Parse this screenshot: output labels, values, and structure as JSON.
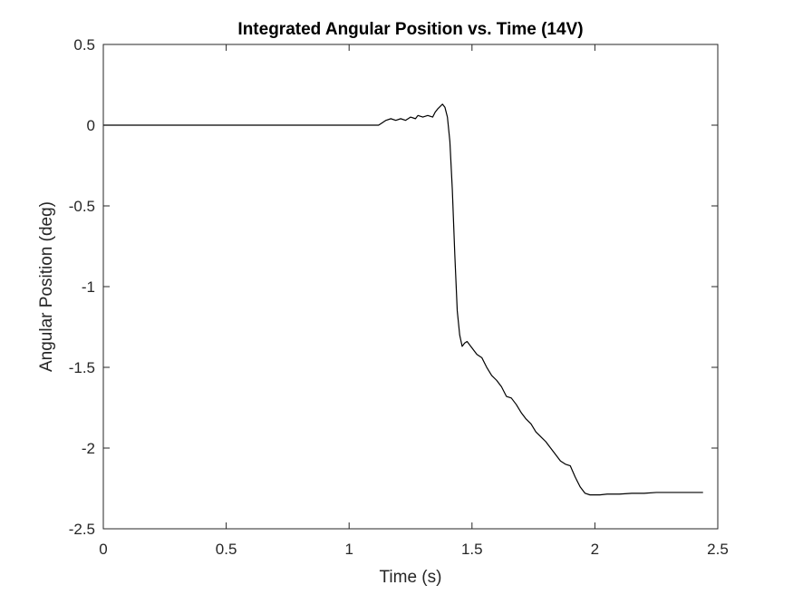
{
  "chart_data": {
    "type": "line",
    "title": "Integrated Angular Position vs. Time (14V)",
    "xlabel": "Time (s)",
    "ylabel": "Angular Position (deg)",
    "xlim": [
      0,
      2.5
    ],
    "ylim": [
      -2.5,
      0.5
    ],
    "xticks": [
      0,
      0.5,
      1,
      1.5,
      2,
      2.5
    ],
    "yticks": [
      -2.5,
      -2,
      -1.5,
      -1,
      -0.5,
      0,
      0.5
    ],
    "xtick_labels": [
      "0",
      "0.5",
      "1",
      "1.5",
      "2",
      "2.5"
    ],
    "ytick_labels": [
      "-2.5",
      "-2",
      "-1.5",
      "-1",
      "-0.5",
      "0",
      "0.5"
    ],
    "grid": false,
    "box": true,
    "line_color": "#000000",
    "axis_color": "#262626",
    "series": [
      {
        "x": [
          0,
          0.5,
          1.0,
          1.12,
          1.13,
          1.15,
          1.17,
          1.19,
          1.21,
          1.23,
          1.25,
          1.27,
          1.28,
          1.3,
          1.32,
          1.34,
          1.35,
          1.36,
          1.38,
          1.39,
          1.4,
          1.41,
          1.42,
          1.43,
          1.44,
          1.45,
          1.46,
          1.47,
          1.48,
          1.5,
          1.52,
          1.54,
          1.56,
          1.58,
          1.6,
          1.62,
          1.64,
          1.66,
          1.68,
          1.7,
          1.72,
          1.74,
          1.76,
          1.78,
          1.8,
          1.82,
          1.84,
          1.86,
          1.88,
          1.9,
          1.92,
          1.94,
          1.96,
          1.98,
          2.0,
          2.02,
          2.05,
          2.1,
          2.15,
          2.2,
          2.25,
          2.3,
          2.35,
          2.4,
          2.44
        ],
        "y": [
          0,
          0,
          0,
          0,
          0.01,
          0.03,
          0.04,
          0.03,
          0.04,
          0.03,
          0.05,
          0.04,
          0.06,
          0.05,
          0.06,
          0.05,
          0.08,
          0.1,
          0.13,
          0.11,
          0.05,
          -0.1,
          -0.4,
          -0.8,
          -1.15,
          -1.3,
          -1.37,
          -1.35,
          -1.34,
          -1.38,
          -1.42,
          -1.44,
          -1.5,
          -1.55,
          -1.58,
          -1.62,
          -1.68,
          -1.69,
          -1.73,
          -1.78,
          -1.82,
          -1.85,
          -1.9,
          -1.93,
          -1.96,
          -2.0,
          -2.04,
          -2.08,
          -2.1,
          -2.11,
          -2.18,
          -2.24,
          -2.28,
          -2.29,
          -2.29,
          -2.29,
          -2.285,
          -2.285,
          -2.28,
          -2.28,
          -2.275,
          -2.275,
          -2.275,
          -2.275,
          -2.275
        ]
      }
    ]
  }
}
